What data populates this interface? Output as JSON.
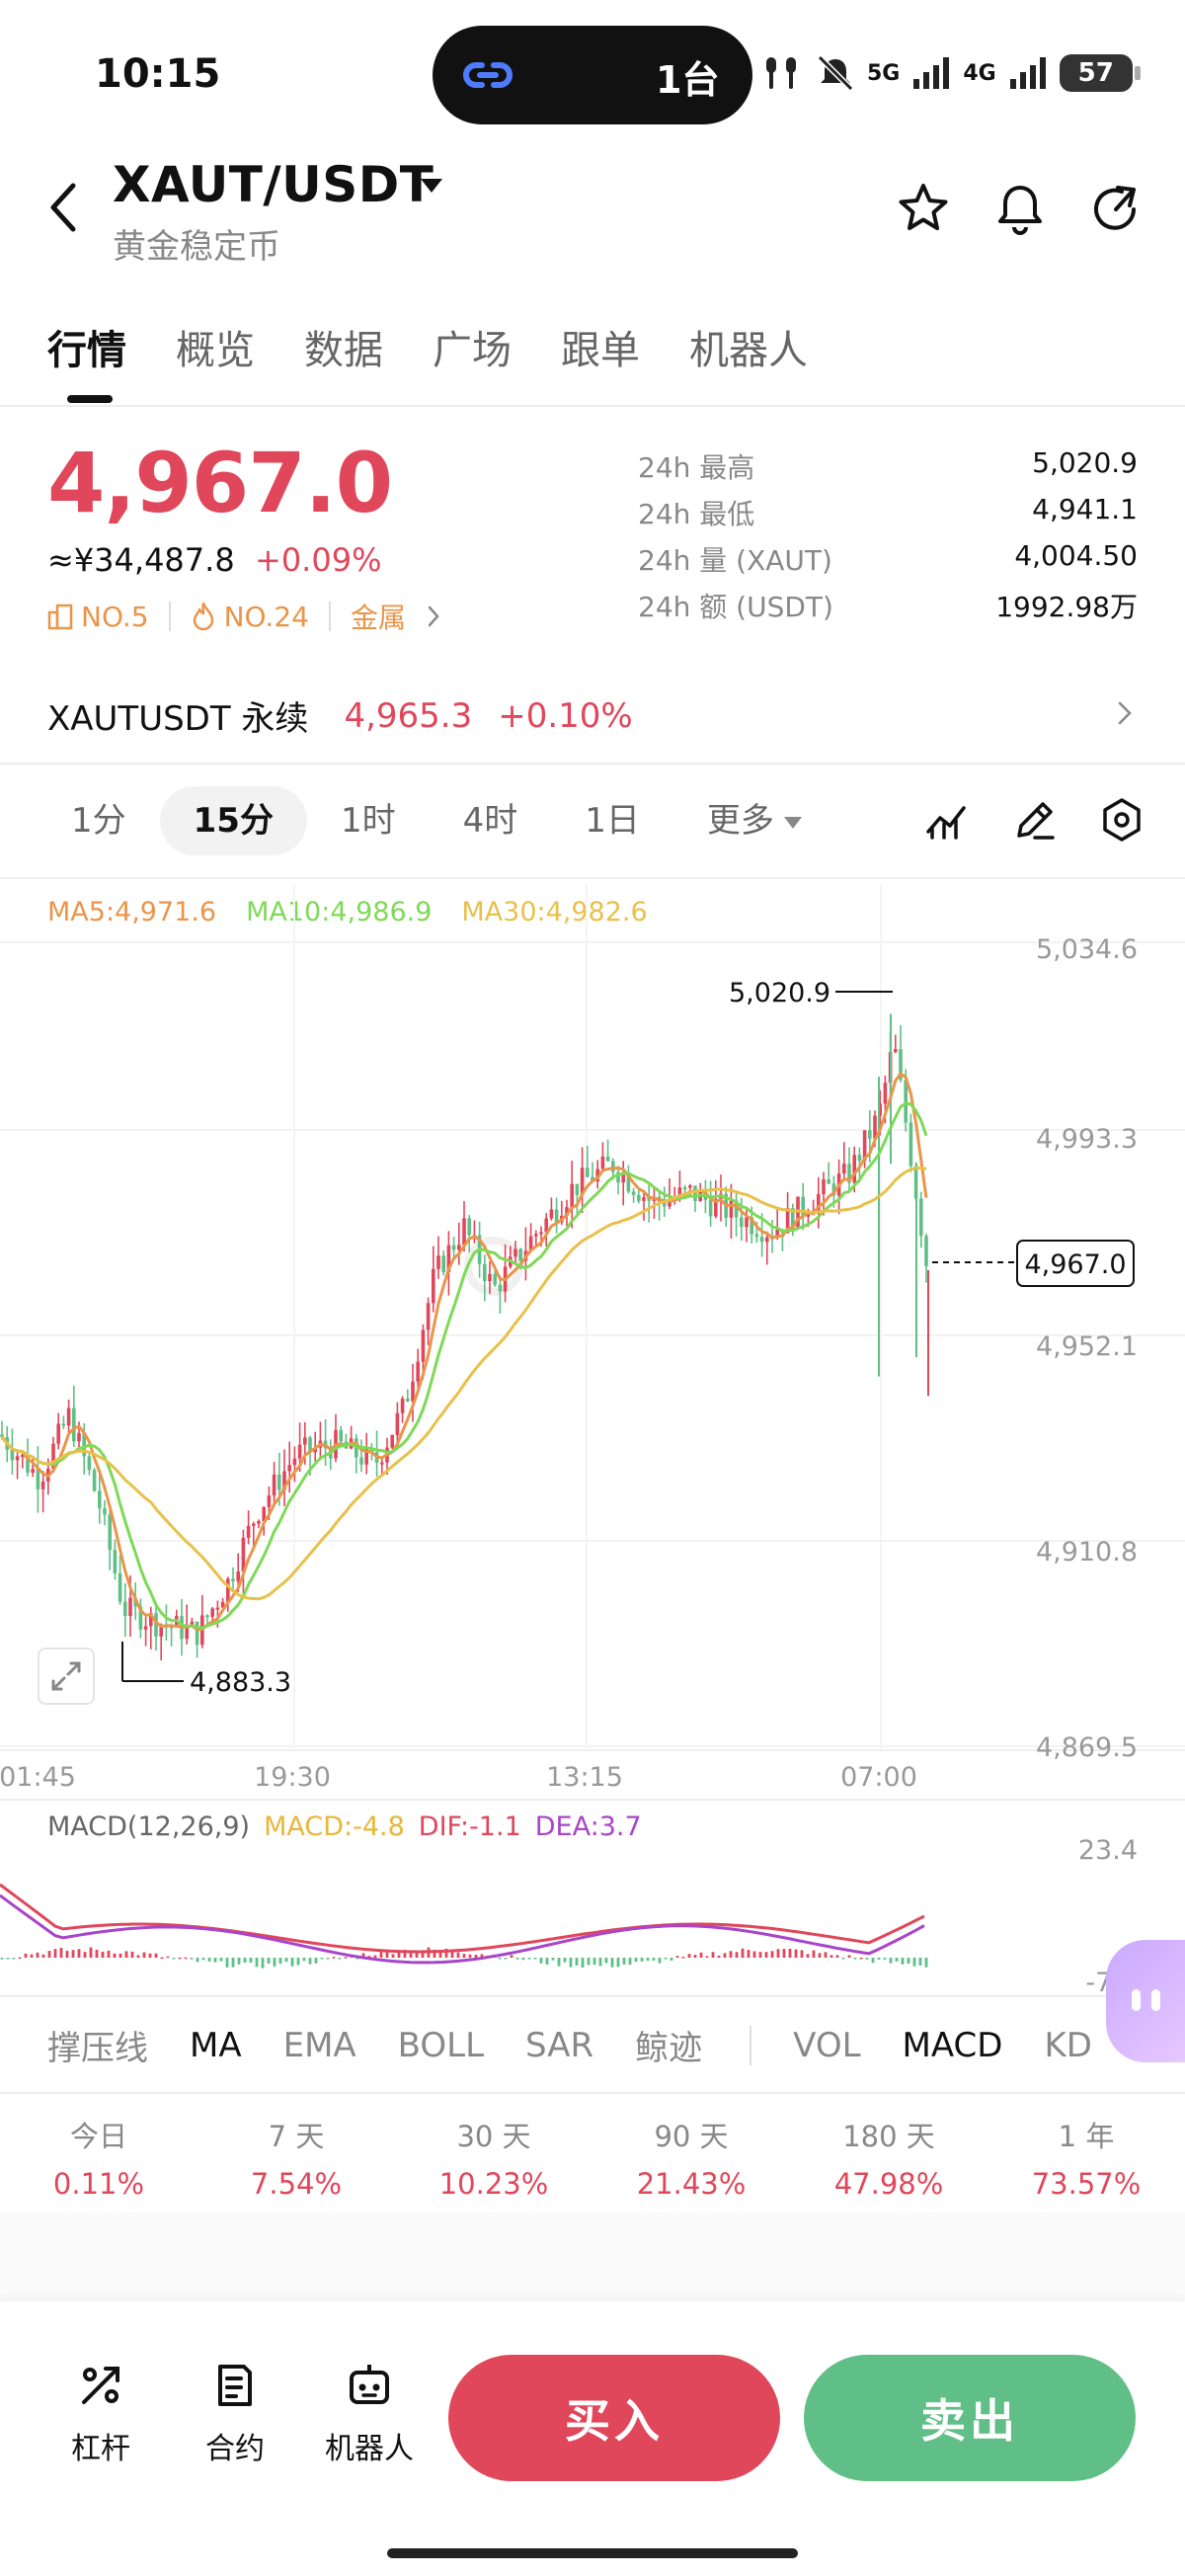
{
  "status_bar": {
    "time": "10:15",
    "island_text": "1台",
    "battery": "57",
    "net1": "5G",
    "net2": "4G"
  },
  "header": {
    "title": "XAUT/USDT",
    "subtitle": "黄金稳定币"
  },
  "tabs": [
    {
      "label": "行情"
    },
    {
      "label": "概览"
    },
    {
      "label": "数据"
    },
    {
      "label": "广场"
    },
    {
      "label": "跟单"
    },
    {
      "label": "机器人"
    }
  ],
  "price": {
    "last": "4,967.0",
    "cny": "≈¥34,487.8",
    "change": "+0.09%"
  },
  "badges": {
    "rank": "NO.5",
    "hot": "NO.24",
    "category": "金属"
  },
  "stats": [
    {
      "label": "24h  最高",
      "value": "5,020.9"
    },
    {
      "label": "24h  最低",
      "value": "4,941.1"
    },
    {
      "label": "24h  量 (XAUT)",
      "value": "4,004.50"
    },
    {
      "label": "24h  额 (USDT)",
      "value": "1992.98万"
    }
  ],
  "perpetual": {
    "name": "XAUTUSDT 永续",
    "price": "4,965.3",
    "change": "+0.10%"
  },
  "intervals": [
    {
      "label": "1分"
    },
    {
      "label": "15分"
    },
    {
      "label": "1时"
    },
    {
      "label": "4时"
    },
    {
      "label": "1日"
    },
    {
      "label": "更多"
    }
  ],
  "chart": {
    "ma5": "MA5:4,971.6",
    "ma10": "MA10:4,986.9",
    "ma30": "MA30:4,982.6",
    "y_ticks": [
      "5,034.6",
      "4,993.3",
      "4,952.1",
      "4,910.8",
      "4,869.5"
    ],
    "x_ticks": [
      "01:45",
      "19:30",
      "13:15",
      "07:00"
    ],
    "high_label": "5,020.9",
    "low_label": "4,883.3",
    "last_label": "4,967.0",
    "macd_legend": {
      "title": "MACD(12,26,9)",
      "macd": "MACD:-4.8",
      "dif": "DIF:-1.1",
      "dea": "DEA:3.7"
    },
    "macd_ticks": [
      "23.4",
      "-7.3"
    ],
    "colors": {
      "up": "#e0475a",
      "down": "#5fbf86",
      "ma5": "#e9954a",
      "ma10": "#7ed957",
      "ma30": "#e8c04a",
      "dif": "#e0475a",
      "dea": "#a845c8"
    }
  },
  "indicators": {
    "main": [
      {
        "label": "撑压线"
      },
      {
        "label": "MA"
      },
      {
        "label": "EMA"
      },
      {
        "label": "BOLL"
      },
      {
        "label": "SAR"
      },
      {
        "label": "鲸迹"
      }
    ],
    "sub": [
      {
        "label": "VOL"
      },
      {
        "label": "MACD"
      },
      {
        "label": "KD"
      }
    ]
  },
  "performance": [
    {
      "label": "今日",
      "value": "0.11%"
    },
    {
      "label": "7 天",
      "value": "7.54%"
    },
    {
      "label": "30 天",
      "value": "10.23%"
    },
    {
      "label": "90 天",
      "value": "21.43%"
    },
    {
      "label": "180 天",
      "value": "47.98%"
    },
    {
      "label": "1 年",
      "value": "73.57%"
    }
  ],
  "bottom_bar": {
    "leverage": "杠杆",
    "contract": "合约",
    "robot": "机器人",
    "buy": "买入",
    "sell": "卖出"
  }
}
